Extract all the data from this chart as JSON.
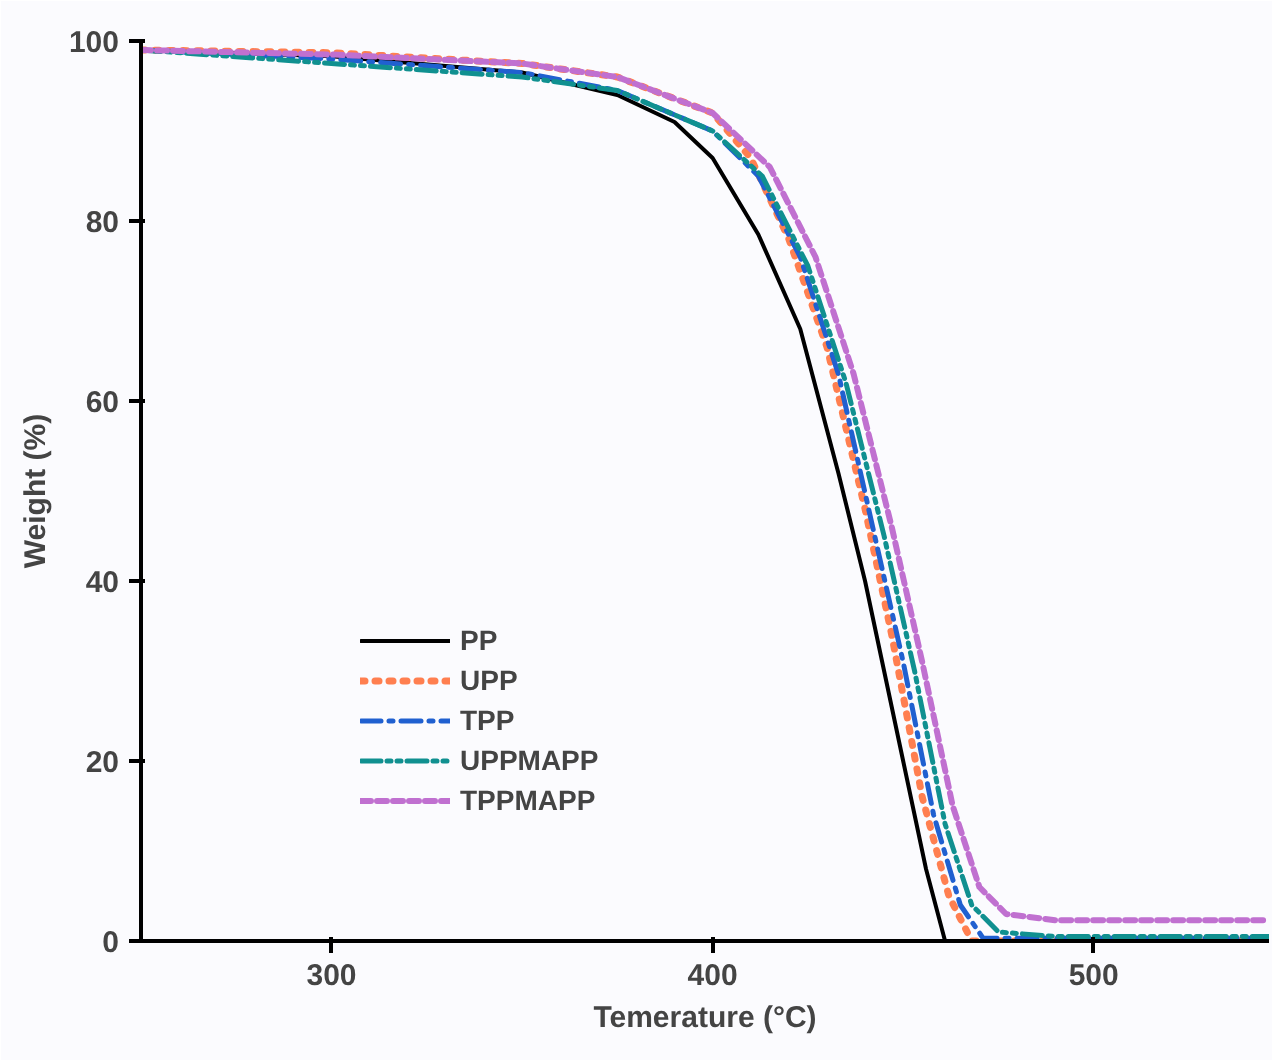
{
  "chart_data": {
    "type": "line",
    "xlabel": "Temerature (°C)",
    "ylabel": "Weight (%)",
    "xlim": [
      250,
      546
    ],
    "ylim": [
      0,
      100
    ],
    "xticks": [
      300,
      400,
      500
    ],
    "yticks": [
      0,
      20,
      40,
      60,
      80,
      100
    ],
    "grid": false,
    "legend": "bottom",
    "series": [
      {
        "name": "PP",
        "color": "#000000",
        "line_style": "solid",
        "x": [
          250,
          300,
          350,
          375,
          390,
          400,
          412,
          423,
          433,
          440,
          450,
          456,
          461,
          546
        ],
        "values": [
          99,
          98.3,
          96.5,
          94,
          91,
          87,
          78.5,
          68,
          52,
          40,
          20,
          8,
          0,
          0
        ]
      },
      {
        "name": "UPP",
        "color": "#ff7f50",
        "line_style": "dotted",
        "x": [
          250,
          300,
          350,
          375,
          400,
          410,
          420,
          430,
          440,
          447,
          455,
          462,
          468,
          546
        ],
        "values": [
          99,
          98.7,
          97.5,
          96,
          92,
          87,
          78,
          66,
          48,
          34,
          16,
          5,
          0,
          0
        ]
      },
      {
        "name": "TPP",
        "color": "#2060d0",
        "line_style": "dashdot",
        "x": [
          250,
          300,
          350,
          375,
          400,
          412,
          423,
          433,
          442,
          450,
          458,
          465,
          471,
          546
        ],
        "values": [
          99,
          98,
          96.5,
          94.5,
          90,
          85,
          76,
          63,
          46,
          31,
          14,
          4,
          0.3,
          0.3
        ]
      },
      {
        "name": "UPPMAPP",
        "color": "#109090",
        "line_style": "dashdotdot",
        "x": [
          250,
          300,
          350,
          375,
          400,
          413,
          425,
          435,
          445,
          453,
          461,
          468,
          475,
          490,
          546
        ],
        "values": [
          99,
          97.5,
          96,
          94.5,
          90,
          85,
          75,
          62,
          45,
          30,
          13,
          4,
          1,
          0.5,
          0.5
        ]
      },
      {
        "name": "TPPMAPP",
        "color": "#c070d0",
        "line_style": "dashed",
        "x": [
          250,
          300,
          350,
          375,
          400,
          415,
          427,
          437,
          447,
          455,
          463,
          470,
          477,
          490,
          546
        ],
        "values": [
          99,
          98.5,
          97.5,
          96,
          92,
          86,
          76,
          63,
          46,
          31,
          15,
          6,
          3,
          2.3,
          2.3
        ]
      }
    ]
  }
}
